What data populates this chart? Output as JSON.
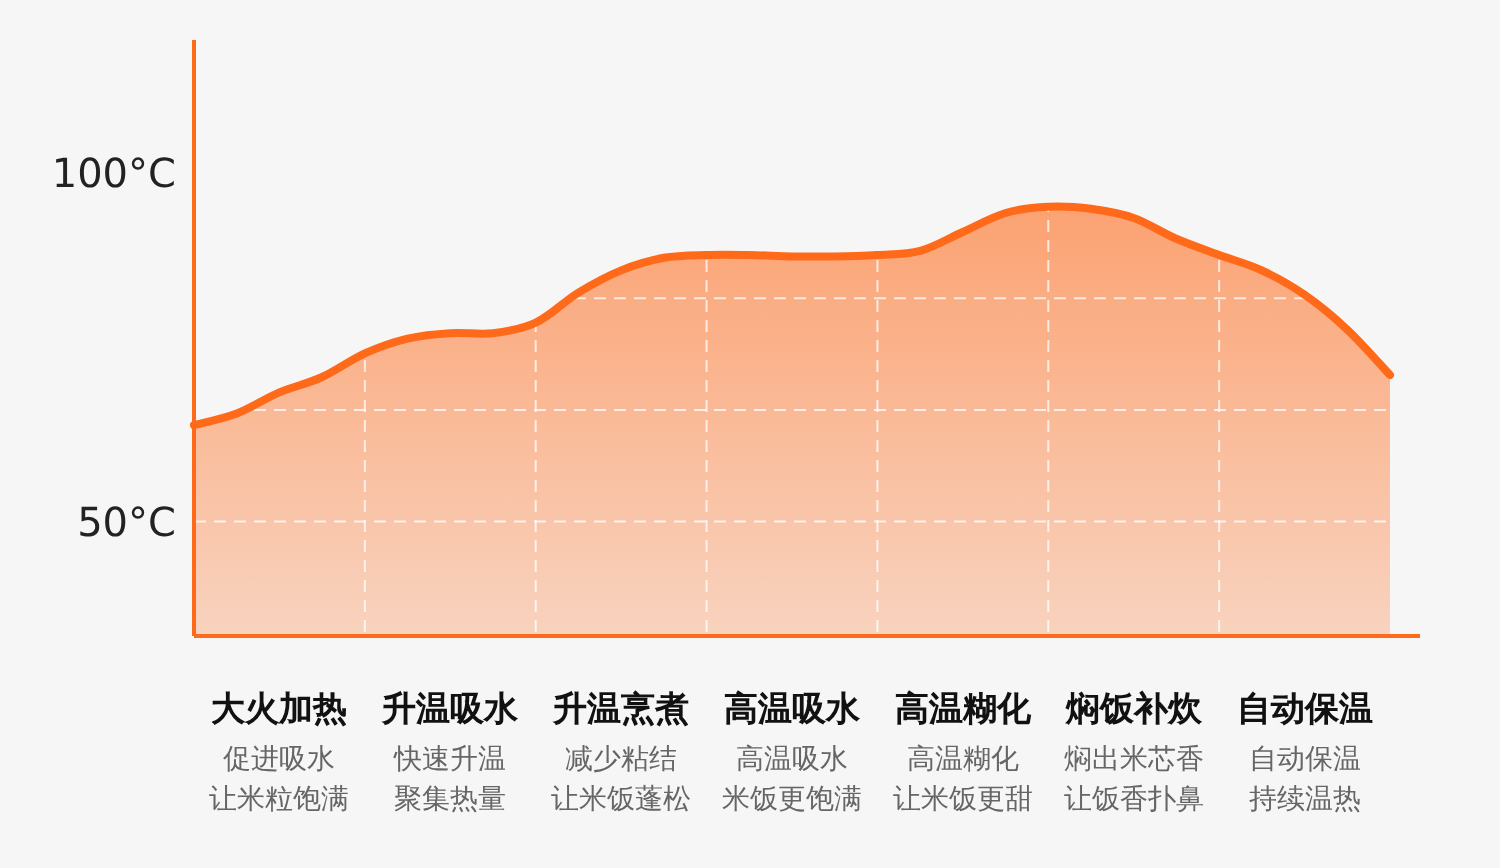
{
  "chart_data": {
    "type": "area",
    "categories": [
      null,
      null,
      "大火加热",
      null,
      null,
      null,
      "升温吸水",
      null,
      null,
      null,
      "升温烹煮",
      null,
      null,
      null,
      "高温吸水",
      null,
      null,
      null,
      "高温糊化",
      null,
      null,
      null,
      "焖饭补炊",
      null,
      null,
      null,
      "自动保温",
      null,
      null
    ],
    "series": [
      {
        "color": "#ff6a1a",
        "values": [
          63.8,
          65.5,
          68.5,
          70.7,
          74.1,
          76.2,
          77,
          77,
          78.5,
          82.8,
          86,
          87.8,
          88.2,
          88.2,
          88,
          88,
          88.2,
          88.8,
          91.5,
          94.2,
          95.1,
          94.8,
          93.5,
          90.5,
          88.2,
          86,
          82.5,
          77.5,
          71
        ]
      }
    ],
    "ylim": [
      33.6,
      119
    ],
    "yticks": [
      {
        "value": 50,
        "label": "50°C"
      },
      {
        "value": 66,
        "label": null
      },
      {
        "value": 82,
        "label": null
      },
      {
        "value": 100,
        "label": "100°C"
      }
    ],
    "grid": true,
    "annotations": [
      "促进吸水让米粒饱满",
      "快速升温聚集热量",
      "减少粘结让米饭蓬松",
      "高温吸水米饭更饱满",
      "高温糊化让米饭更甜",
      "焖出米芯香让饭香扑鼻",
      "自动保温持续温热"
    ]
  }
}
